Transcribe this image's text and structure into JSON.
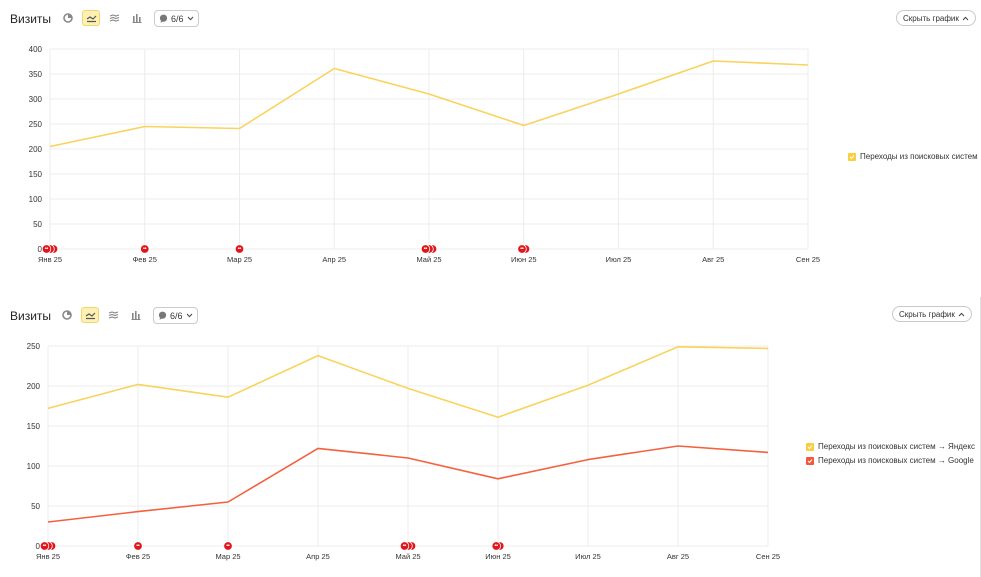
{
  "panels": [
    {
      "title": "Визиты",
      "annotations_label": "6/6",
      "hide_label": "Скрыть график",
      "legend": [
        {
          "label": "Переходы из поисковых систем",
          "color": "#f9cf3e"
        }
      ]
    },
    {
      "title": "Визиты",
      "annotations_label": "6/6",
      "hide_label": "Скрыть график",
      "legend": [
        {
          "label": "Переходы из поисковых систем → Яндекс",
          "color": "#f9cf3e"
        },
        {
          "label": "Переходы из поисковых систем → Google",
          "color": "#f4553b"
        }
      ]
    }
  ],
  "colors": {
    "accent": "#fdf0b3",
    "marker": "#e0161b"
  },
  "chart_data": [
    {
      "type": "line",
      "categories": [
        "Янв 25",
        "Фев 25",
        "Мар 25",
        "Апр 25",
        "Май 25",
        "Июн 25",
        "Июл 25",
        "Авг 25",
        "Сен 25"
      ],
      "yticks": [
        0,
        50,
        100,
        150,
        200,
        250,
        300,
        350,
        400
      ],
      "ylim": [
        0,
        400
      ],
      "grid": true,
      "legend_position": "right",
      "series": [
        {
          "name": "Переходы из поисковых систем",
          "color": "#f9d35c",
          "values": [
            205,
            245,
            241,
            361,
            310,
            247,
            310,
            376,
            368
          ]
        }
      ],
      "markers": [
        {
          "category": "Янв 25",
          "count": 3
        },
        {
          "category": "Фев 25",
          "count": 1
        },
        {
          "category": "Мар 25",
          "count": 1
        },
        {
          "category": "Май 25",
          "count": 3
        },
        {
          "category": "Июн 25",
          "count": 2
        }
      ]
    },
    {
      "type": "line",
      "categories": [
        "Янв 25",
        "Фев 25",
        "Мар 25",
        "Апр 25",
        "Май 25",
        "Июн 25",
        "Июл 25",
        "Авг 25",
        "Сен 25"
      ],
      "yticks": [
        0,
        50,
        100,
        150,
        200,
        250
      ],
      "ylim": [
        0,
        250
      ],
      "grid": true,
      "legend_position": "right",
      "series": [
        {
          "name": "Переходы из поисковых систем → Яндекс",
          "color": "#f9d35c",
          "values": [
            172,
            202,
            186,
            238,
            197,
            161,
            201,
            249,
            247
          ]
        },
        {
          "name": "Переходы из поисковых систем → Google",
          "color": "#f4613f",
          "values": [
            30,
            43,
            55,
            122,
            110,
            84,
            108,
            125,
            117
          ]
        }
      ],
      "markers": [
        {
          "category": "Янв 25",
          "count": 3
        },
        {
          "category": "Фев 25",
          "count": 1
        },
        {
          "category": "Мар 25",
          "count": 1
        },
        {
          "category": "Май 25",
          "count": 3
        },
        {
          "category": "Июн 25",
          "count": 2
        }
      ]
    }
  ]
}
